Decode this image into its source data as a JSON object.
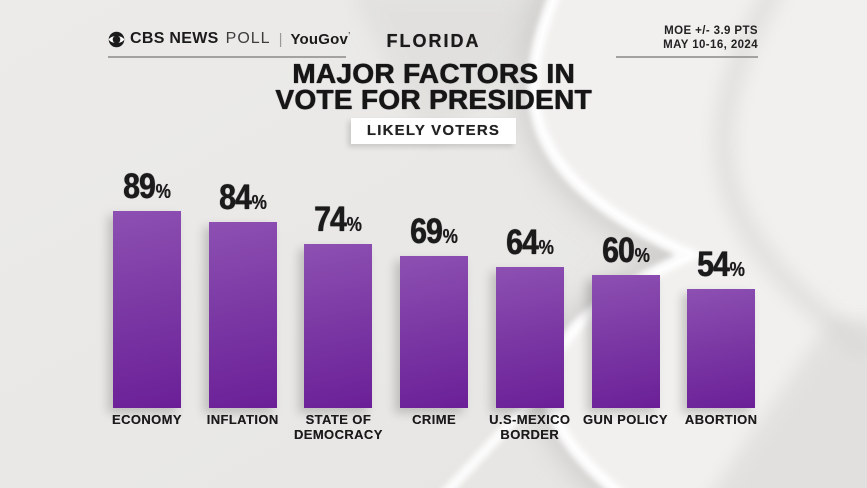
{
  "header": {
    "brand": {
      "cbs": "CBS NEWS",
      "poll": "POLL",
      "divider": "|",
      "yougov": "YouGov",
      "yougov_mark": "’"
    },
    "state": "FLORIDA",
    "moe_line1": "MOE +/- 3.9 PTS",
    "moe_line2": "MAY 10-16, 2024",
    "title_line1": "MAJOR FACTORS IN",
    "title_line2": "VOTE FOR PRESIDENT",
    "subtitle_badge": "LIKELY VOTERS"
  },
  "icons": {
    "cbs_eye_icon": "cbs-eye (circle with vesica eye and round pupil)"
  },
  "colors": {
    "background": "#e9e8e6",
    "text": "#1b1b1b",
    "underline": "#a3a2a0",
    "badge_background": "#ffffff",
    "bar_top": "#8d50b2",
    "bar_bottom": "#6b1f97"
  },
  "chart_data": {
    "type": "bar",
    "title": "MAJOR FACTORS IN VOTE FOR PRESIDENT",
    "subtitle": "LIKELY VOTERS",
    "region": "FLORIDA",
    "source_note": "MOE +/- 3.9 PTS, MAY 10-16, 2024",
    "categories": [
      "ECONOMY",
      "INFLATION",
      "STATE OF DEMOCRACY",
      "CRIME",
      "U.S-MEXICO BORDER",
      "GUN POLICY",
      "ABORTION"
    ],
    "category_lines": [
      [
        "ECONOMY"
      ],
      [
        "INFLATION"
      ],
      [
        "STATE OF",
        "DEMOCRACY"
      ],
      [
        "CRIME"
      ],
      [
        "U.S-MEXICO",
        "BORDER"
      ],
      [
        "GUN POLICY"
      ],
      [
        "ABORTION"
      ]
    ],
    "values": [
      89,
      84,
      74,
      69,
      64,
      60,
      54
    ],
    "unit": "%",
    "ylim": [
      0,
      100
    ],
    "grid": false,
    "legend": "none",
    "value_labels": "above bars",
    "bar_colors": {
      "top": "#8d50b2",
      "bottom": "#6b1f97"
    }
  }
}
